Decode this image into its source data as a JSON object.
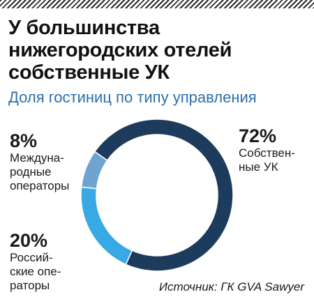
{
  "title": "У большинства нижегородских отелей собственные УК",
  "subtitle": "Доля гостиниц по типу управления",
  "source": "Источник: ГК GVA Sawyer",
  "chart_data": {
    "type": "pie",
    "title": "У большинства нижегородских отелей собственные УК",
    "subtitle": "Доля гостиниц по типу управления",
    "slices": [
      {
        "label": "Собствен-\nные УК",
        "value": 72,
        "display": "72%",
        "color": "#1d3b5c"
      },
      {
        "label": "Россий-\nские опе-\nраторы",
        "value": 20,
        "display": "20%",
        "color": "#38a9e4"
      },
      {
        "label": "Междуна-\nродные\nоператоры",
        "value": 8,
        "display": "8%",
        "color": "#6fa3d0"
      }
    ]
  }
}
